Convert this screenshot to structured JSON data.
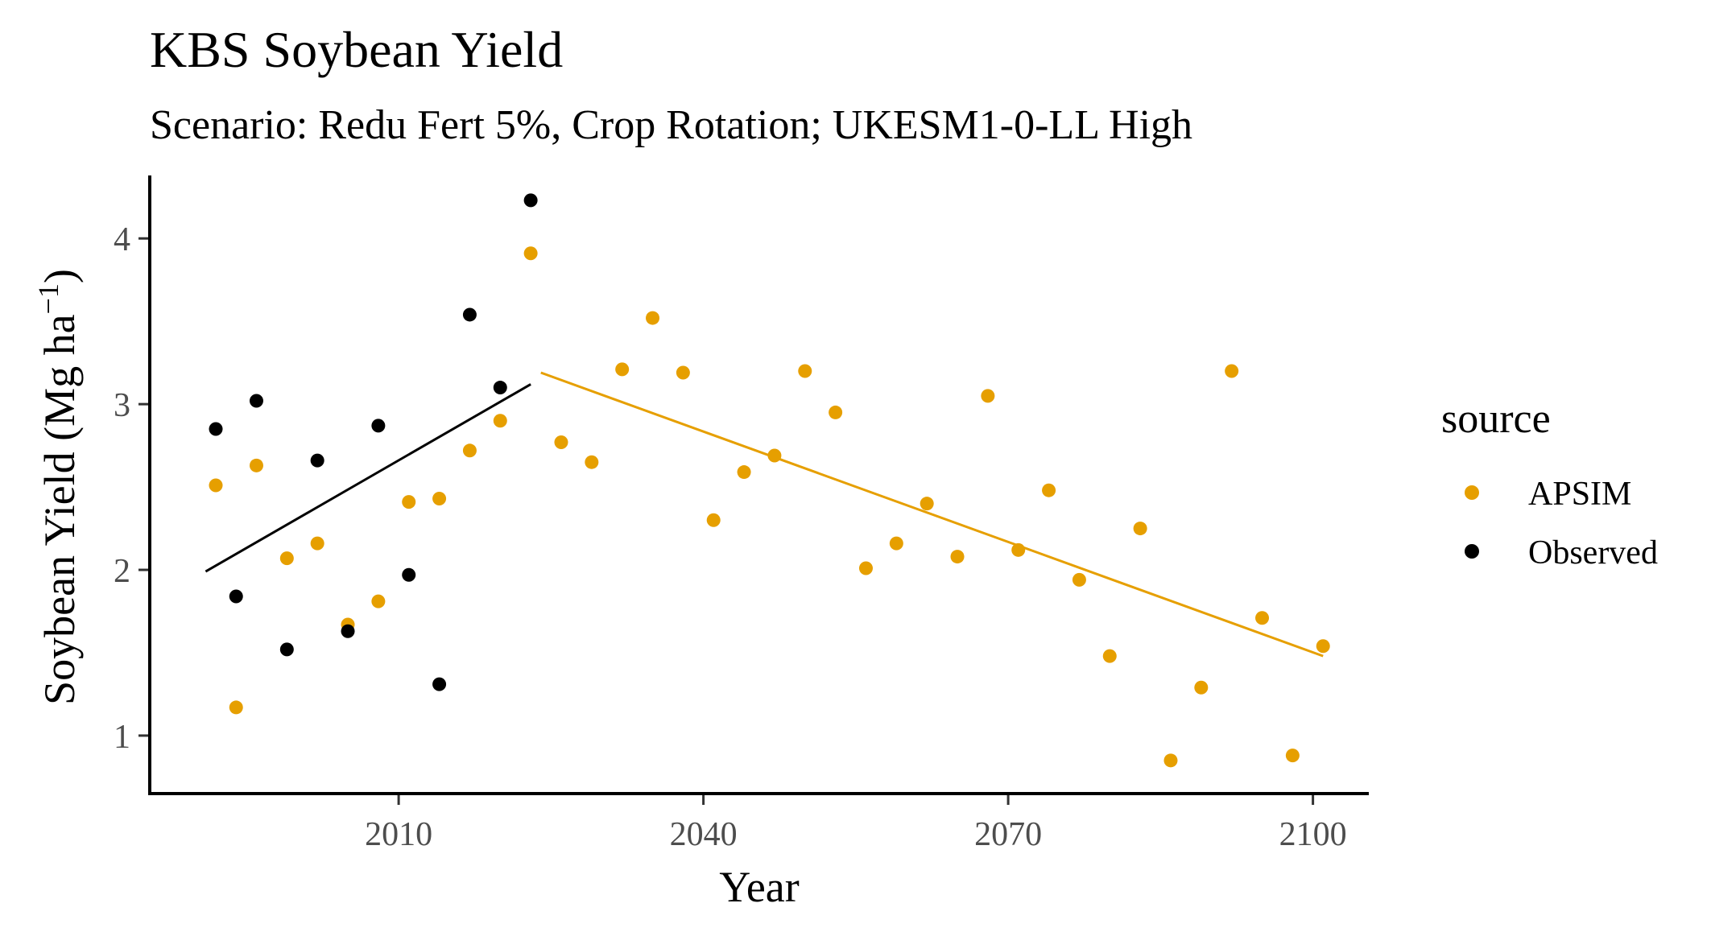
{
  "chart_data": {
    "type": "scatter",
    "title": "KBS Soybean Yield",
    "subtitle": "Scenario: Redu Fert 5%, Crop Rotation; UKESM1-0-LL High",
    "xlabel": "Year",
    "ylabel": "Soybean Yield (Mg ha",
    "ylabel_sup": "−1",
    "ylabel_close": ")",
    "xlim": [
      1985.5,
      2105.5
    ],
    "ylim": [
      0.65,
      4.38
    ],
    "x_ticks": [
      2010,
      2040,
      2070,
      2100
    ],
    "y_ticks": [
      1,
      2,
      3,
      4
    ],
    "grid": false,
    "legend": {
      "title": "source",
      "position": "right",
      "entries": [
        {
          "label": "APSIM",
          "color": "#E69F00"
        },
        {
          "label": "Observed",
          "color": "#000000"
        }
      ]
    },
    "series": [
      {
        "name": "APSIM",
        "color": "#E69F00",
        "points": [
          [
            1992,
            2.51
          ],
          [
            1994,
            1.17
          ],
          [
            1996,
            2.63
          ],
          [
            1999,
            2.07
          ],
          [
            2002,
            2.16
          ],
          [
            2005,
            1.67
          ],
          [
            2008,
            1.81
          ],
          [
            2011,
            2.41
          ],
          [
            2014,
            2.43
          ],
          [
            2017,
            2.72
          ],
          [
            2020,
            2.9
          ],
          [
            2023,
            3.91
          ],
          [
            2026,
            2.77
          ],
          [
            2029,
            2.65
          ],
          [
            2032,
            3.21
          ],
          [
            2035,
            3.52
          ],
          [
            2038,
            3.19
          ],
          [
            2041,
            2.3
          ],
          [
            2044,
            2.59
          ],
          [
            2047,
            2.69
          ],
          [
            2050,
            3.2
          ],
          [
            2053,
            2.95
          ],
          [
            2056,
            2.01
          ],
          [
            2059,
            2.16
          ],
          [
            2062,
            2.4
          ],
          [
            2065,
            2.08
          ],
          [
            2068,
            3.05
          ],
          [
            2071,
            2.12
          ],
          [
            2074,
            2.48
          ],
          [
            2077,
            1.94
          ],
          [
            2080,
            1.48
          ],
          [
            2083,
            2.25
          ],
          [
            2086,
            0.85
          ],
          [
            2089,
            1.29
          ],
          [
            2092,
            3.2
          ],
          [
            2095,
            1.71
          ],
          [
            2098,
            0.88
          ],
          [
            2101,
            1.54
          ]
        ],
        "trend": [
          [
            2024,
            3.19
          ],
          [
            2101,
            1.48
          ]
        ]
      },
      {
        "name": "Observed",
        "color": "#000000",
        "points": [
          [
            1992,
            2.85
          ],
          [
            1994,
            1.84
          ],
          [
            1996,
            3.02
          ],
          [
            1999,
            1.52
          ],
          [
            2002,
            2.66
          ],
          [
            2005,
            1.63
          ],
          [
            2008,
            2.87
          ],
          [
            2011,
            1.97
          ],
          [
            2014,
            1.31
          ],
          [
            2017,
            3.54
          ],
          [
            2020,
            3.1
          ],
          [
            2023,
            4.23
          ]
        ],
        "trend": [
          [
            1991,
            1.99
          ],
          [
            2023,
            3.12
          ]
        ]
      }
    ]
  }
}
